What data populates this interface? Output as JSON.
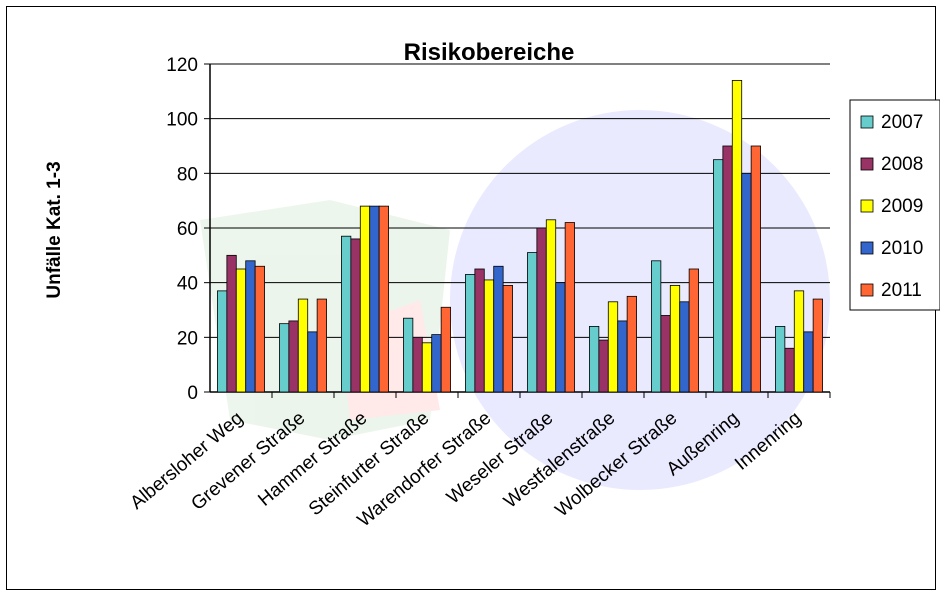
{
  "chart_data": {
    "type": "bar",
    "title": "Risikobereiche",
    "ylabel": "Unfälle Kat. 1-3",
    "xlabel": "",
    "ylim": [
      0,
      120
    ],
    "yticks": [
      0,
      20,
      40,
      60,
      80,
      100,
      120
    ],
    "grid": true,
    "legend_position": "right",
    "categories": [
      "Albersloher Weg",
      "Grevener Straße",
      "Hammer Straße",
      "Steinfurter Straße",
      "Warendorfer Straße",
      "Weseler Straße",
      "Westfalenstraße",
      "Wolbecker Straße",
      "Außenring",
      "Innenring"
    ],
    "series": [
      {
        "name": "2007",
        "color": "#66CCCC",
        "values": [
          37,
          25,
          57,
          27,
          43,
          51,
          24,
          48,
          85,
          24
        ]
      },
      {
        "name": "2008",
        "color": "#993366",
        "values": [
          50,
          26,
          56,
          20,
          45,
          60,
          19,
          28,
          90,
          16
        ]
      },
      {
        "name": "2009",
        "color": "#FFFF00",
        "values": [
          45,
          34,
          68,
          18,
          41,
          63,
          33,
          39,
          114,
          37
        ]
      },
      {
        "name": "2010",
        "color": "#3366CC",
        "values": [
          48,
          22,
          68,
          21,
          46,
          40,
          26,
          33,
          80,
          22
        ]
      },
      {
        "name": "2011",
        "color": "#FF6633",
        "values": [
          46,
          34,
          68,
          31,
          39,
          62,
          35,
          45,
          90,
          34
        ]
      }
    ]
  }
}
